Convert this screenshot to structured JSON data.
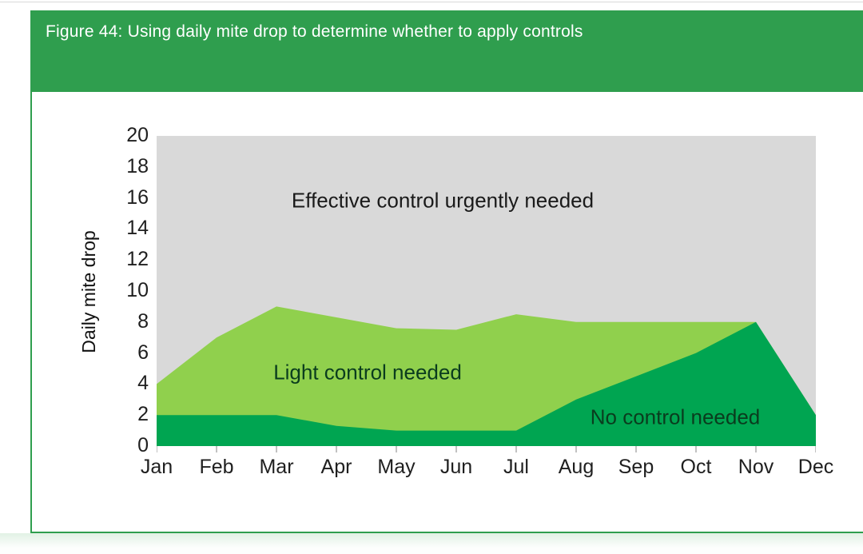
{
  "page": {
    "title": "Figure 44: Using daily mite drop to determine whether to apply controls"
  },
  "colors": {
    "header_green": "#2f9e4e",
    "panel_border_green": "#2f9e4e",
    "no_control_green": "#00a551",
    "light_control_green": "#90d04d",
    "urgent_gray": "#d9d9d9",
    "axis_text": "#1f1f1f",
    "tick_mark": "#c2c2c2",
    "title_text": "#ffffff"
  },
  "chart_data": {
    "type": "area",
    "title": "Figure 44: Using daily mite drop to determine whether to apply controls",
    "xlabel": "",
    "ylabel": "Daily mite drop",
    "x_categories": [
      "Jan",
      "Feb",
      "Mar",
      "Apr",
      "May",
      "Jun",
      "Jul",
      "Aug",
      "Sep",
      "Oct",
      "Nov",
      "Dec"
    ],
    "y_ticks": [
      0,
      2,
      4,
      6,
      8,
      10,
      12,
      14,
      16,
      18,
      20
    ],
    "ylim": [
      0,
      20
    ],
    "grid": false,
    "legend": "labels drawn inside regions",
    "values_are": "absolute boundary lines (daily mite drop thresholds), regions filled between boundaries",
    "series": [
      {
        "name": "No control needed",
        "fill": "#00a551",
        "region": "from 0 up to this boundary",
        "values": [
          2,
          2,
          2,
          1.3,
          1,
          1,
          1,
          3,
          4.5,
          6,
          8,
          2
        ]
      },
      {
        "name": "Light control needed",
        "fill": "#90d04d",
        "region": "between the no-control boundary and this boundary",
        "values": [
          4,
          7,
          9,
          8.3,
          7.6,
          7.5,
          8.5,
          8,
          8,
          8,
          8,
          2
        ]
      },
      {
        "name": "Effective control urgently needed",
        "fill": "#d9d9d9",
        "region": "above the light-control boundary up to 20"
      }
    ]
  }
}
